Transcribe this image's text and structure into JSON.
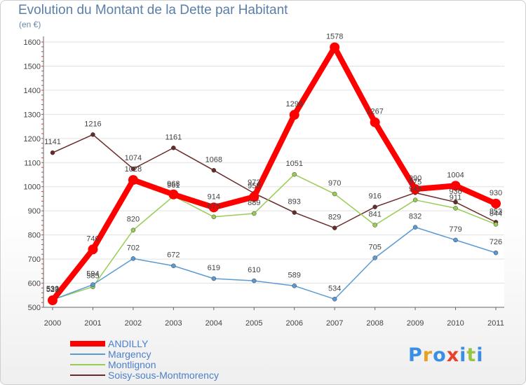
{
  "title": "Evolution du Montant de la Dette par Habitant",
  "unit_label": "(en €)",
  "logo_text": "Proxiti",
  "chart_data": {
    "type": "line",
    "title": "Evolution du Montant de la Dette par Habitant",
    "ylabel": "(en €)",
    "xlabel": "",
    "x": [
      "2000",
      "2001",
      "2002",
      "2003",
      "2004",
      "2005",
      "2006",
      "2007",
      "2008",
      "2009",
      "2010",
      "2011"
    ],
    "ylim": [
      500,
      1600
    ],
    "yticks": [
      500,
      600,
      700,
      800,
      900,
      1000,
      1100,
      1200,
      1300,
      1400,
      1500,
      1600
    ],
    "grid": true,
    "legend_position": "bottom-left",
    "series": [
      {
        "name": "ANDILLY",
        "color": "#ff0000",
        "values": [
          529,
          740,
          1028,
          968,
          914,
          958,
          1298,
          1578,
          1267,
          990,
          1004,
          930
        ]
      },
      {
        "name": "Margency",
        "color": "#5b9bd5",
        "values": [
          531,
          594,
          702,
          672,
          619,
          610,
          589,
          534,
          705,
          832,
          779,
          726
        ]
      },
      {
        "name": "Montlignon",
        "color": "#99cc55",
        "values": [
          532,
          585,
          820,
          961,
          875,
          889,
          1051,
          970,
          841,
          945,
          911,
          844
        ]
      },
      {
        "name": "Soisy-sous-Montmorency",
        "color": "#6b2a2a",
        "values": [
          1141,
          1216,
          1074,
          1161,
          1068,
          973,
          893,
          829,
          916,
          975,
          936,
          853
        ]
      }
    ]
  }
}
